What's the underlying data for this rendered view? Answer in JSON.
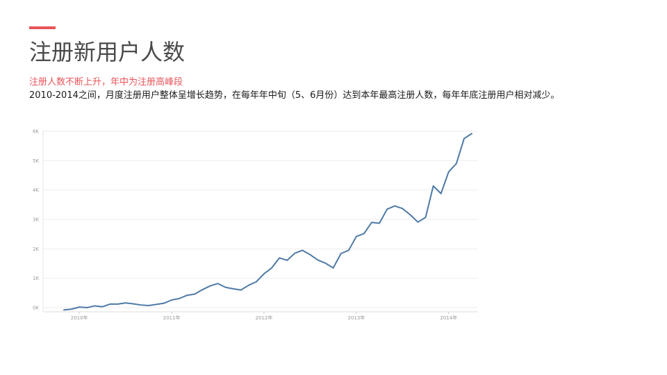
{
  "title": "注册新用户人数",
  "subtitle": "注册人数不断上升，年中为注册高峰段",
  "description": "2010-2014之间，月度注册用户整体呈增长趋势，在每年年中旬（5、6月份）达到本年最高注册人数，每年年底注册用户相对减少。",
  "colors": {
    "accent": "#e8555a",
    "line": "#4e79a7",
    "grid": "#eeeeee",
    "tick": "#999999"
  },
  "chart_data": {
    "type": "line",
    "x_type": "date",
    "x": [
      "2009-11",
      "2009-12",
      "2010-01",
      "2010-02",
      "2010-03",
      "2010-04",
      "2010-05",
      "2010-06",
      "2010-07",
      "2010-08",
      "2010-09",
      "2010-10",
      "2010-11",
      "2010-12",
      "2011-01",
      "2011-02",
      "2011-03",
      "2011-04",
      "2011-05",
      "2011-06",
      "2011-07",
      "2011-08",
      "2011-09",
      "2011-10",
      "2011-11",
      "2011-12",
      "2012-01",
      "2012-02",
      "2012-03",
      "2012-04",
      "2012-05",
      "2012-06",
      "2012-07",
      "2012-08",
      "2012-09",
      "2012-10",
      "2012-11",
      "2012-12",
      "2013-01",
      "2013-02",
      "2013-03",
      "2013-04",
      "2013-05",
      "2013-06",
      "2013-07",
      "2013-08",
      "2013-09",
      "2013-10",
      "2013-11",
      "2013-12",
      "2014-01",
      "2014-02",
      "2014-03",
      "2014-04"
    ],
    "values": [
      -80,
      -50,
      20,
      0,
      60,
      30,
      120,
      120,
      160,
      130,
      90,
      70,
      110,
      150,
      260,
      310,
      420,
      460,
      610,
      740,
      820,
      690,
      640,
      600,
      760,
      880,
      1150,
      1350,
      1690,
      1610,
      1850,
      1950,
      1800,
      1620,
      1510,
      1350,
      1840,
      1950,
      2420,
      2520,
      2900,
      2870,
      3350,
      3460,
      3370,
      3160,
      2910,
      3070,
      4140,
      3880,
      4620,
      4900,
      5750,
      5920
    ],
    "ylim": [
      -150,
      6000
    ],
    "y_ticks": [
      0,
      1000,
      2000,
      3000,
      4000,
      5000,
      6000
    ],
    "y_tick_labels": [
      "0K",
      "1K",
      "2K",
      "3K",
      "4K",
      "5K",
      "6K"
    ],
    "x_ticks": [
      "2010-01",
      "2011-01",
      "2012-01",
      "2013-01",
      "2014-01"
    ],
    "x_tick_labels": [
      "2010年",
      "2011年",
      "2012年",
      "2013年",
      "2014年"
    ],
    "grid": true,
    "legend": "none"
  }
}
